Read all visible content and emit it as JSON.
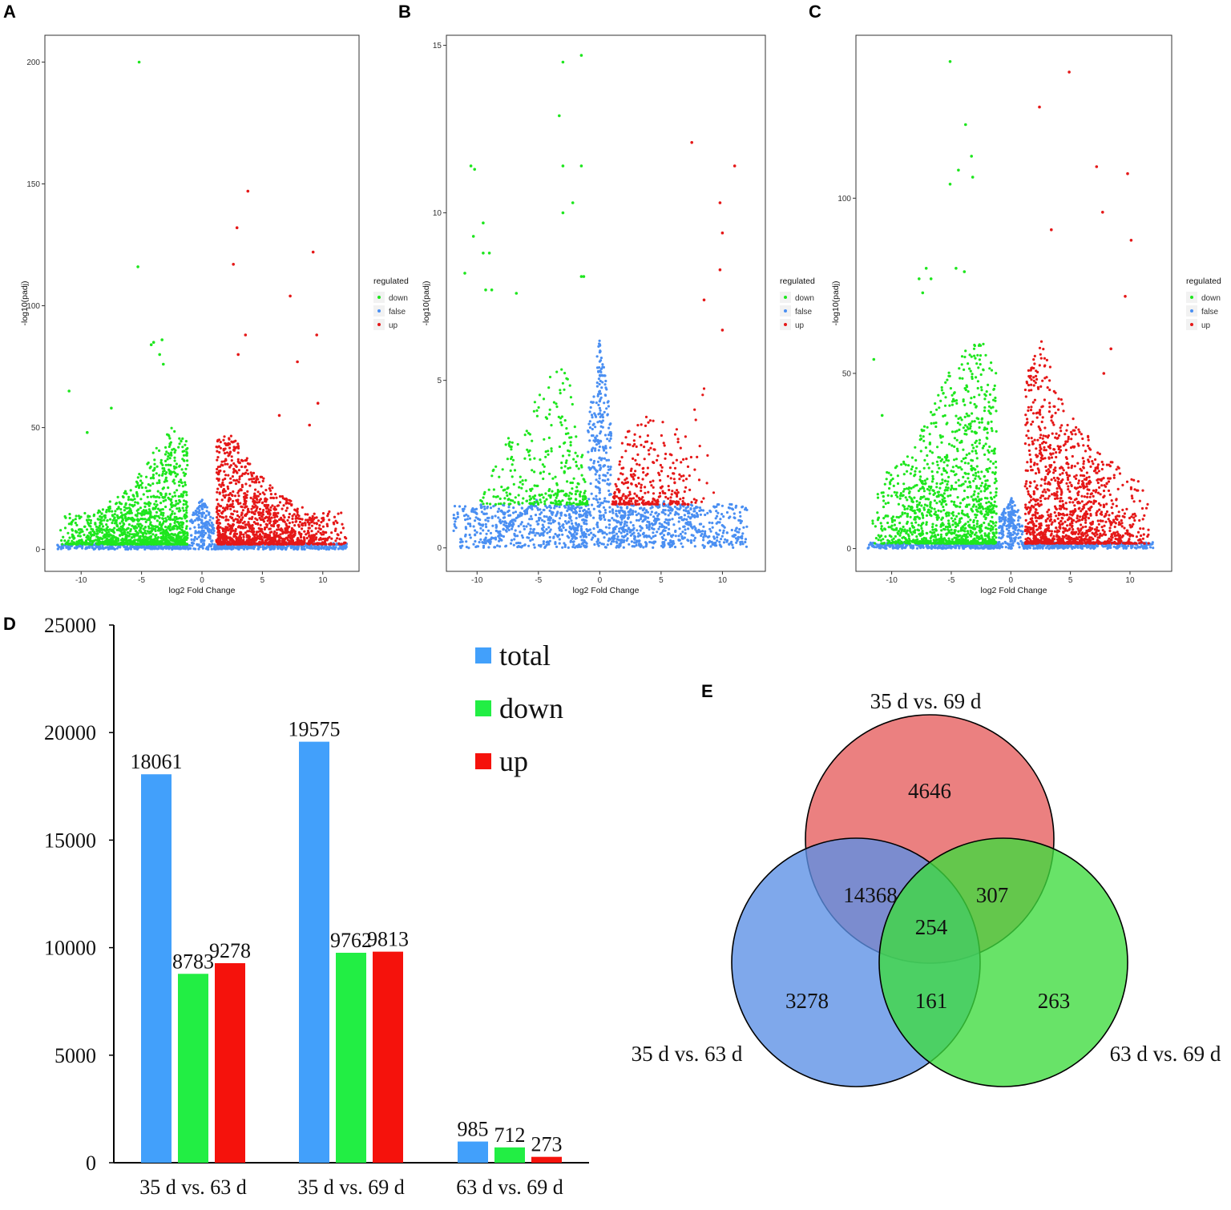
{
  "colors": {
    "down": "#1ee61e",
    "false": "#4a8ff2",
    "up": "#e51818",
    "bar_total": "#42a0fb",
    "bar_down": "#22ee44",
    "bar_up": "#f5120c",
    "venn_69": "#e55c5c",
    "venn_63": "#5b8fe6",
    "venn_6369": "#3ddb3d"
  },
  "chart_data": [
    {
      "panel": "A",
      "type": "scatter",
      "xlabel": "log2 Fold Change",
      "ylabel": "-log10(padj)",
      "xlim": [
        -13,
        13
      ],
      "ylim": [
        -9,
        211
      ],
      "xticks": [
        -10,
        -5,
        0,
        5,
        10
      ],
      "yticks": [
        0,
        50,
        100,
        150,
        200
      ],
      "legend": {
        "title": "regulated",
        "items": [
          "down",
          "false",
          "up"
        ],
        "position": "right"
      },
      "highlight_points": {
        "down": [
          [
            -5.2,
            200
          ],
          [
            -5.3,
            116
          ],
          [
            -11,
            65
          ],
          [
            -3.3,
            86
          ],
          [
            -4,
            85
          ],
          [
            -4.2,
            84
          ],
          [
            -3.2,
            76
          ],
          [
            -9.5,
            48
          ],
          [
            -7.5,
            58
          ],
          [
            -3.5,
            80
          ]
        ],
        "up": [
          [
            3.8,
            147
          ],
          [
            2.9,
            132
          ],
          [
            2.6,
            117
          ],
          [
            9.2,
            122
          ],
          [
            7.3,
            104
          ],
          [
            9.5,
            88
          ],
          [
            3.6,
            88
          ],
          [
            7.9,
            77
          ],
          [
            9.6,
            60
          ],
          [
            6.4,
            55
          ],
          [
            3,
            80
          ],
          [
            8.9,
            51
          ]
        ]
      },
      "envelope": {
        "down": [
          [
            -12,
            15
          ],
          [
            -9,
            15
          ],
          [
            -6,
            25
          ],
          [
            -4,
            40
          ],
          [
            -2.5,
            50
          ],
          [
            -1.2,
            45
          ]
        ],
        "up": [
          [
            1.2,
            45
          ],
          [
            2.5,
            50
          ],
          [
            4,
            35
          ],
          [
            6,
            25
          ],
          [
            9,
            15
          ],
          [
            12,
            16
          ]
        ]
      }
    },
    {
      "panel": "B",
      "type": "scatter",
      "xlabel": "log2 Fold Change",
      "ylabel": "-log10(padj)",
      "xlim": [
        -12.5,
        13.5
      ],
      "ylim": [
        -0.7,
        15.3
      ],
      "xticks": [
        -10,
        -5,
        0,
        5,
        10
      ],
      "yticks": [
        0,
        5,
        10,
        15
      ],
      "legend": {
        "title": "regulated",
        "items": [
          "down",
          "false",
          "up"
        ],
        "position": "right"
      },
      "highlight_points": {
        "down": [
          [
            -1.5,
            14.7
          ],
          [
            -3,
            14.5
          ],
          [
            -3.3,
            12.9
          ],
          [
            -3,
            11.4
          ],
          [
            -1.5,
            11.4
          ],
          [
            -10.5,
            11.4
          ],
          [
            -10.2,
            11.3
          ],
          [
            -3,
            10
          ],
          [
            -2.2,
            10.3
          ],
          [
            -9.5,
            9.7
          ],
          [
            -10.3,
            9.3
          ],
          [
            -11,
            8.2
          ],
          [
            -9.5,
            8.8
          ],
          [
            -9,
            8.8
          ],
          [
            -9.3,
            7.7
          ],
          [
            -8.8,
            7.7
          ],
          [
            -6.8,
            7.6
          ],
          [
            -1.5,
            8.1
          ],
          [
            -1.3,
            8.1
          ]
        ],
        "up": [
          [
            7.5,
            12.1
          ],
          [
            11,
            11.4
          ],
          [
            9.8,
            10.3
          ],
          [
            10,
            9.4
          ],
          [
            9.8,
            8.3
          ],
          [
            8.5,
            7.4
          ],
          [
            10,
            6.5
          ]
        ]
      },
      "envelope": {
        "down": [
          [
            -10,
            1.5
          ],
          [
            -8,
            3
          ],
          [
            -6,
            4
          ],
          [
            -3.5,
            5.5
          ],
          [
            -2,
            5
          ],
          [
            -1,
            1.3
          ]
        ],
        "up": [
          [
            1,
            1.3
          ],
          [
            2,
            3.5
          ],
          [
            4,
            4
          ],
          [
            6.5,
            3.5
          ],
          [
            8.5,
            5
          ],
          [
            9.5,
            1.5
          ]
        ]
      }
    },
    {
      "panel": "C",
      "type": "scatter",
      "xlabel": "log2 Fold Change",
      "ylabel": "-log10(padj)",
      "xlim": [
        -13,
        13.5
      ],
      "ylim": [
        -6.5,
        146.5
      ],
      "xticks": [
        -10,
        -5,
        0,
        5,
        10
      ],
      "yticks": [
        0,
        50,
        100
      ],
      "legend": {
        "title": "regulated",
        "items": [
          "down",
          "false",
          "up"
        ],
        "position": "right"
      },
      "highlight_points": {
        "down": [
          [
            -5.1,
            139
          ],
          [
            -3.8,
            121
          ],
          [
            -3.3,
            112
          ],
          [
            -4.4,
            108
          ],
          [
            -5.1,
            104
          ],
          [
            -3.2,
            106
          ],
          [
            -7.1,
            80
          ],
          [
            -6.7,
            77
          ],
          [
            -7.7,
            77
          ],
          [
            -7.4,
            73
          ],
          [
            -4.6,
            80
          ],
          [
            -3.9,
            79
          ],
          [
            -11.5,
            54
          ],
          [
            -10.8,
            38
          ]
        ],
        "up": [
          [
            4.9,
            136
          ],
          [
            2.4,
            126
          ],
          [
            7.2,
            109
          ],
          [
            9.8,
            107
          ],
          [
            7.7,
            96
          ],
          [
            3.4,
            91
          ],
          [
            10.1,
            88
          ],
          [
            9.6,
            72
          ],
          [
            8.4,
            57
          ],
          [
            7.8,
            50
          ]
        ]
      },
      "envelope": {
        "down": [
          [
            -12,
            18
          ],
          [
            -9,
            25
          ],
          [
            -7,
            40
          ],
          [
            -4.5,
            55
          ],
          [
            -2.5,
            60
          ],
          [
            -1.2,
            50
          ]
        ],
        "up": [
          [
            1.2,
            50
          ],
          [
            2.5,
            60
          ],
          [
            4.5,
            40
          ],
          [
            7,
            30
          ],
          [
            10,
            20
          ],
          [
            12,
            20
          ]
        ]
      }
    },
    {
      "panel": "D",
      "type": "bar",
      "categories": [
        "35 d vs. 63 d",
        "35 d vs. 69 d",
        "63 d vs. 69 d"
      ],
      "series": [
        {
          "name": "total",
          "values": [
            18061,
            19575,
            985
          ]
        },
        {
          "name": "down",
          "values": [
            8783,
            9762,
            712
          ]
        },
        {
          "name": "up",
          "values": [
            9278,
            9813,
            273
          ]
        }
      ],
      "ylim": [
        0,
        25000
      ],
      "yticks": [
        0,
        5000,
        10000,
        15000,
        20000,
        25000
      ],
      "legend_position": "top-right"
    },
    {
      "panel": "E",
      "type": "venn",
      "sets": [
        "35 d vs. 69 d",
        "35 d vs. 63 d",
        "63 d vs. 69 d"
      ],
      "regions": {
        "only_69": 4646,
        "only_63": 3278,
        "only_6369": 263,
        "69_63": 14368,
        "69_6369": 307,
        "63_6369": 161,
        "all": 254
      }
    }
  ]
}
